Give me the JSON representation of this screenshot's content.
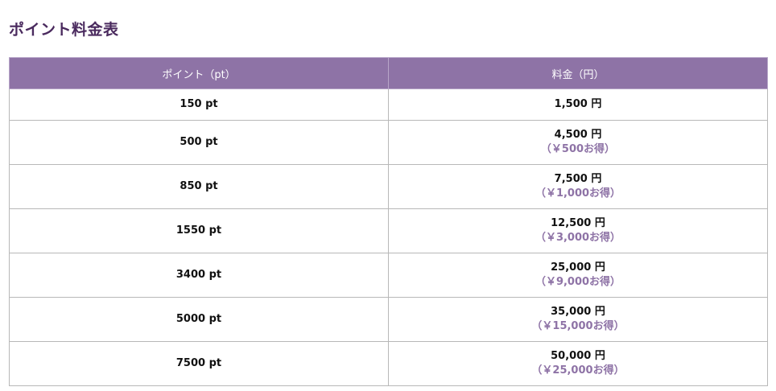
{
  "page": {
    "title": "ポイント料金表"
  },
  "table": {
    "headers": [
      "ポイント（pt）",
      "料金（円）"
    ],
    "rows": [
      {
        "points": "150 pt",
        "price": "1,500 円",
        "saving": ""
      },
      {
        "points": "500 pt",
        "price": "4,500 円",
        "saving": "（￥500お得）"
      },
      {
        "points": "850 pt",
        "price": "7,500 円",
        "saving": "（￥1,000お得）"
      },
      {
        "points": "1550 pt",
        "price": "12,500 円",
        "saving": "（￥3,000お得）"
      },
      {
        "points": "3400 pt",
        "price": "25,000 円",
        "saving": "（￥9,000お得）"
      },
      {
        "points": "5000 pt",
        "price": "35,000 円",
        "saving": "（￥15,000お得）"
      },
      {
        "points": "7500 pt",
        "price": "50,000 円",
        "saving": "（￥25,000お得）"
      }
    ]
  },
  "colors": {
    "header_bg": "#8e73a6",
    "title_text": "#4a2a5e",
    "saving_text": "#8e73a6",
    "border": "#b8b8b8"
  }
}
